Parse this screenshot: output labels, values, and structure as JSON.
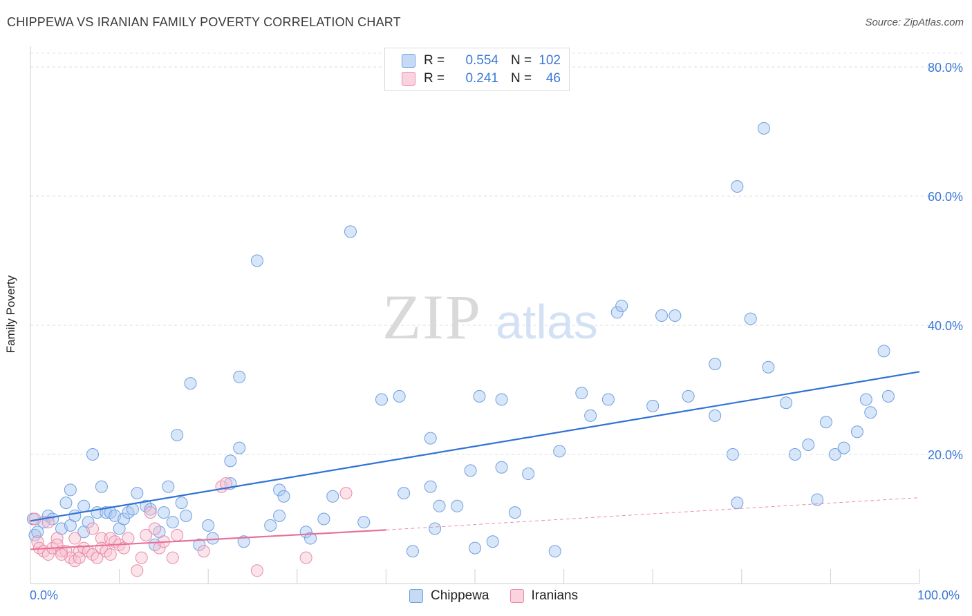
{
  "header": {
    "title": "CHIPPEWA VS IRANIAN FAMILY POVERTY CORRELATION CHART",
    "source": "Source: ZipAtlas.com"
  },
  "watermark": {
    "zip": "ZIP",
    "atlas": "atlas"
  },
  "legend": {
    "rows": [
      {
        "r_label": "R =",
        "r_value": "0.554",
        "n_label": "N =",
        "n_value": "102",
        "color": "#a9c8f2",
        "border": "#6f9fe0"
      },
      {
        "r_label": "R =",
        "r_value": "0.241",
        "n_label": "N =",
        "n_value": "46",
        "color": "#f7c0d0",
        "border": "#e98aa8"
      }
    ]
  },
  "bottom_legend": [
    "Chippewa",
    "Iranians"
  ],
  "x_axis": {
    "min_label": "0.0%",
    "max_label": "100.0%"
  },
  "chart_data": {
    "type": "scatter",
    "ylabel": "Family Poverty",
    "xlim": [
      0,
      100
    ],
    "ylim": [
      0,
      85
    ],
    "y_ticks": [
      20,
      40,
      60,
      80
    ],
    "y_tick_labels": [
      "20.0%",
      "40.0%",
      "60.0%",
      "80.0%"
    ],
    "grid": "horizontal dashed",
    "colors": {
      "chippewa": "#5b8fd9",
      "iranians": "#ee8aac",
      "chippewa_line": "#2f72d4",
      "iranians_line": "#e8709a",
      "tick_text": "#3a78d6"
    },
    "series": [
      {
        "name": "Chippewa",
        "points": [
          [
            0.3,
            10.0
          ],
          [
            0.5,
            7.5
          ],
          [
            0.8,
            8.0
          ],
          [
            1.5,
            9.5
          ],
          [
            2.0,
            10.5
          ],
          [
            2.5,
            10.0
          ],
          [
            3.5,
            8.5
          ],
          [
            4.0,
            12.5
          ],
          [
            4.5,
            9.0
          ],
          [
            4.5,
            14.5
          ],
          [
            5.0,
            10.5
          ],
          [
            6.0,
            8.0
          ],
          [
            6.0,
            12.0
          ],
          [
            6.5,
            9.5
          ],
          [
            7.0,
            20.0
          ],
          [
            7.5,
            11.0
          ],
          [
            8.0,
            15.0
          ],
          [
            8.5,
            11.0
          ],
          [
            9.0,
            11.0
          ],
          [
            9.5,
            10.5
          ],
          [
            10.0,
            8.5
          ],
          [
            10.5,
            10.0
          ],
          [
            11.0,
            11.0
          ],
          [
            11.5,
            11.5
          ],
          [
            12.0,
            14.0
          ],
          [
            13.0,
            12.0
          ],
          [
            13.5,
            11.5
          ],
          [
            14.0,
            6.0
          ],
          [
            14.5,
            8.0
          ],
          [
            15.0,
            11.0
          ],
          [
            15.5,
            15.0
          ],
          [
            16.0,
            9.5
          ],
          [
            16.5,
            23.0
          ],
          [
            17.0,
            12.5
          ],
          [
            17.5,
            10.5
          ],
          [
            18.0,
            31.0
          ],
          [
            19.0,
            6.0
          ],
          [
            20.0,
            9.0
          ],
          [
            20.5,
            7.0
          ],
          [
            22.5,
            15.5
          ],
          [
            22.5,
            19.0
          ],
          [
            23.5,
            32.0
          ],
          [
            23.5,
            21.0
          ],
          [
            24.0,
            6.5
          ],
          [
            25.5,
            50.0
          ],
          [
            27.0,
            9.0
          ],
          [
            28.0,
            14.5
          ],
          [
            28.0,
            10.5
          ],
          [
            28.5,
            13.5
          ],
          [
            31.0,
            8.0
          ],
          [
            31.5,
            7.0
          ],
          [
            33.0,
            10.0
          ],
          [
            34.0,
            13.5
          ],
          [
            36.0,
            54.5
          ],
          [
            37.5,
            9.5
          ],
          [
            39.5,
            28.5
          ],
          [
            41.5,
            29.0
          ],
          [
            42.0,
            14.0
          ],
          [
            43.0,
            5.0
          ],
          [
            45.0,
            15.0
          ],
          [
            45.0,
            22.5
          ],
          [
            45.5,
            8.5
          ],
          [
            46.0,
            12.0
          ],
          [
            48.0,
            12.0
          ],
          [
            49.5,
            17.5
          ],
          [
            50.0,
            5.5
          ],
          [
            50.5,
            29.0
          ],
          [
            52.0,
            6.5
          ],
          [
            53.0,
            18.0
          ],
          [
            53.0,
            28.5
          ],
          [
            54.5,
            11.0
          ],
          [
            56.0,
            17.0
          ],
          [
            59.0,
            5.0
          ],
          [
            59.5,
            20.5
          ],
          [
            62.0,
            29.5
          ],
          [
            63.0,
            26.0
          ],
          [
            65.0,
            28.5
          ],
          [
            66.0,
            42.0
          ],
          [
            66.5,
            43.0
          ],
          [
            70.0,
            27.5
          ],
          [
            71.0,
            41.5
          ],
          [
            72.5,
            41.5
          ],
          [
            74.0,
            29.0
          ],
          [
            77.0,
            26.0
          ],
          [
            77.0,
            34.0
          ],
          [
            79.0,
            20.0
          ],
          [
            79.5,
            61.5
          ],
          [
            79.5,
            12.5
          ],
          [
            81.0,
            41.0
          ],
          [
            82.5,
            70.5
          ],
          [
            83.0,
            33.5
          ],
          [
            85.0,
            28.0
          ],
          [
            86.0,
            20.0
          ],
          [
            87.5,
            21.5
          ],
          [
            88.5,
            13.0
          ],
          [
            89.5,
            25.0
          ],
          [
            90.5,
            20.0
          ],
          [
            91.5,
            21.0
          ],
          [
            93.0,
            23.5
          ],
          [
            94.0,
            28.5
          ],
          [
            94.5,
            26.5
          ],
          [
            96.0,
            36.0
          ],
          [
            96.5,
            29.0
          ]
        ]
      },
      {
        "name": "Iranians",
        "points": [
          [
            0.5,
            10.0
          ],
          [
            0.8,
            6.5
          ],
          [
            1.0,
            5.5
          ],
          [
            1.5,
            5.0
          ],
          [
            2.0,
            4.5
          ],
          [
            2.0,
            9.5
          ],
          [
            2.5,
            5.5
          ],
          [
            3.0,
            7.0
          ],
          [
            3.0,
            6.0
          ],
          [
            3.5,
            5.0
          ],
          [
            4.0,
            5.0
          ],
          [
            4.5,
            4.0
          ],
          [
            5.0,
            3.5
          ],
          [
            5.0,
            7.0
          ],
          [
            5.5,
            5.0
          ],
          [
            5.5,
            4.0
          ],
          [
            6.0,
            5.5
          ],
          [
            6.5,
            5.0
          ],
          [
            7.0,
            4.5
          ],
          [
            7.0,
            8.5
          ],
          [
            7.5,
            4.0
          ],
          [
            8.0,
            7.0
          ],
          [
            8.0,
            5.5
          ],
          [
            8.5,
            5.0
          ],
          [
            9.0,
            4.5
          ],
          [
            9.0,
            7.0
          ],
          [
            9.5,
            6.5
          ],
          [
            10.0,
            6.0
          ],
          [
            10.5,
            5.5
          ],
          [
            11.0,
            7.0
          ],
          [
            12.0,
            2.0
          ],
          [
            12.5,
            4.0
          ],
          [
            13.0,
            7.5
          ],
          [
            13.5,
            11.0
          ],
          [
            14.0,
            8.5
          ],
          [
            14.5,
            5.5
          ],
          [
            15.0,
            6.5
          ],
          [
            16.0,
            4.0
          ],
          [
            16.5,
            7.5
          ],
          [
            19.5,
            5.0
          ],
          [
            21.5,
            15.0
          ],
          [
            25.5,
            2.0
          ],
          [
            31.0,
            4.0
          ],
          [
            35.5,
            14.0
          ],
          [
            22.0,
            15.5
          ],
          [
            3.5,
            4.5
          ]
        ]
      }
    ],
    "trendlines": [
      {
        "name": "Chippewa",
        "x": [
          0,
          100
        ],
        "y": [
          9.7,
          32.8
        ]
      },
      {
        "name": "Iranians",
        "x": [
          0,
          40
        ],
        "y": [
          5.3,
          8.3
        ],
        "dashed_extension_to": [
          100,
          13.3
        ]
      }
    ]
  }
}
